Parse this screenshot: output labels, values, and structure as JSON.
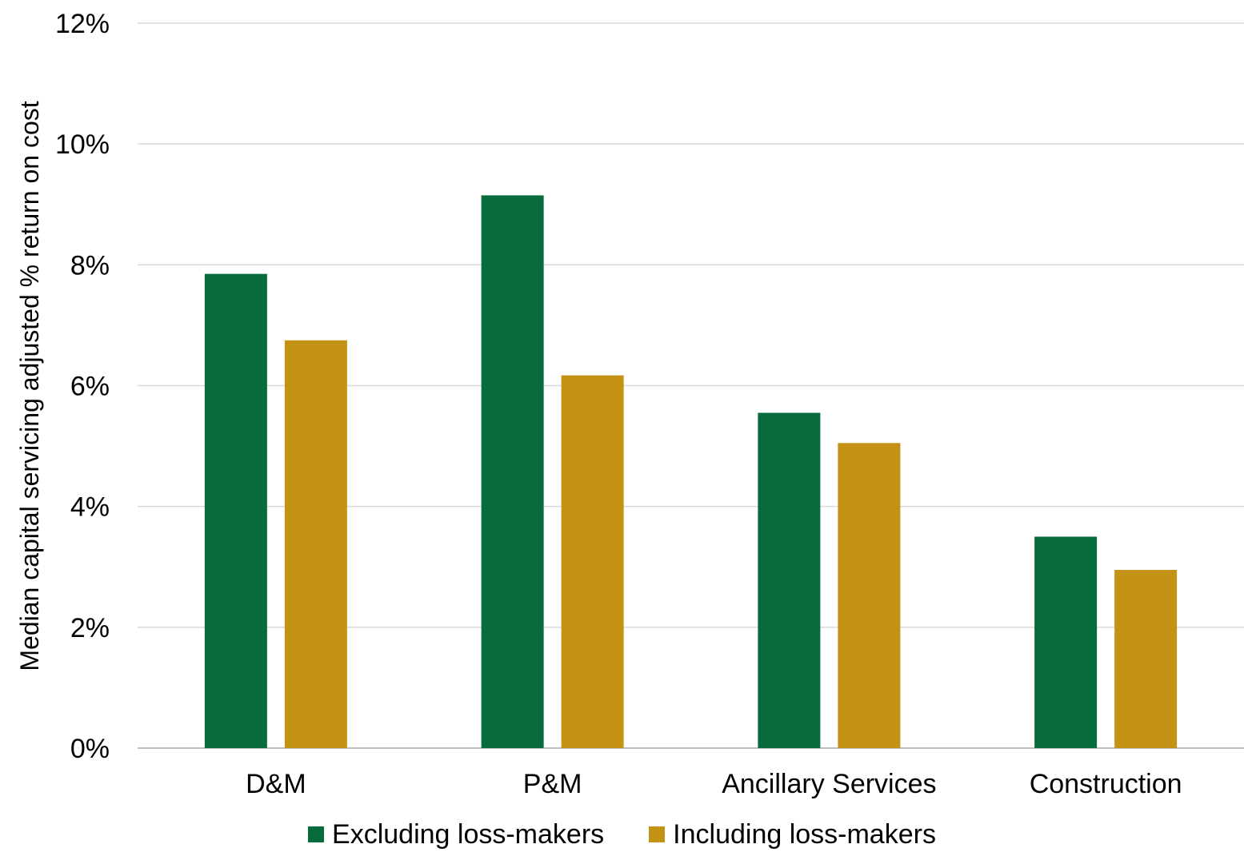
{
  "chart_data": {
    "type": "bar",
    "title": "",
    "xlabel": "",
    "ylabel": "Median capital servicing adjusted % return on cost",
    "categories": [
      "D&M",
      "P&M",
      "Ancillary Services",
      "Construction"
    ],
    "series": [
      {
        "name": "Excluding loss-makers",
        "color": "#076b3b",
        "values": [
          7.85,
          9.15,
          5.55,
          3.5
        ]
      },
      {
        "name": "Including loss-makers",
        "color": "#c49214",
        "values": [
          6.75,
          6.17,
          5.05,
          2.95
        ]
      }
    ],
    "ylim": [
      0,
      12
    ],
    "yticks": [
      "0%",
      "2%",
      "4%",
      "6%",
      "8%",
      "10%",
      "12%"
    ],
    "ytick_values": [
      0,
      2,
      4,
      6,
      8,
      10,
      12
    ],
    "grid": true,
    "legend_position": "bottom"
  }
}
